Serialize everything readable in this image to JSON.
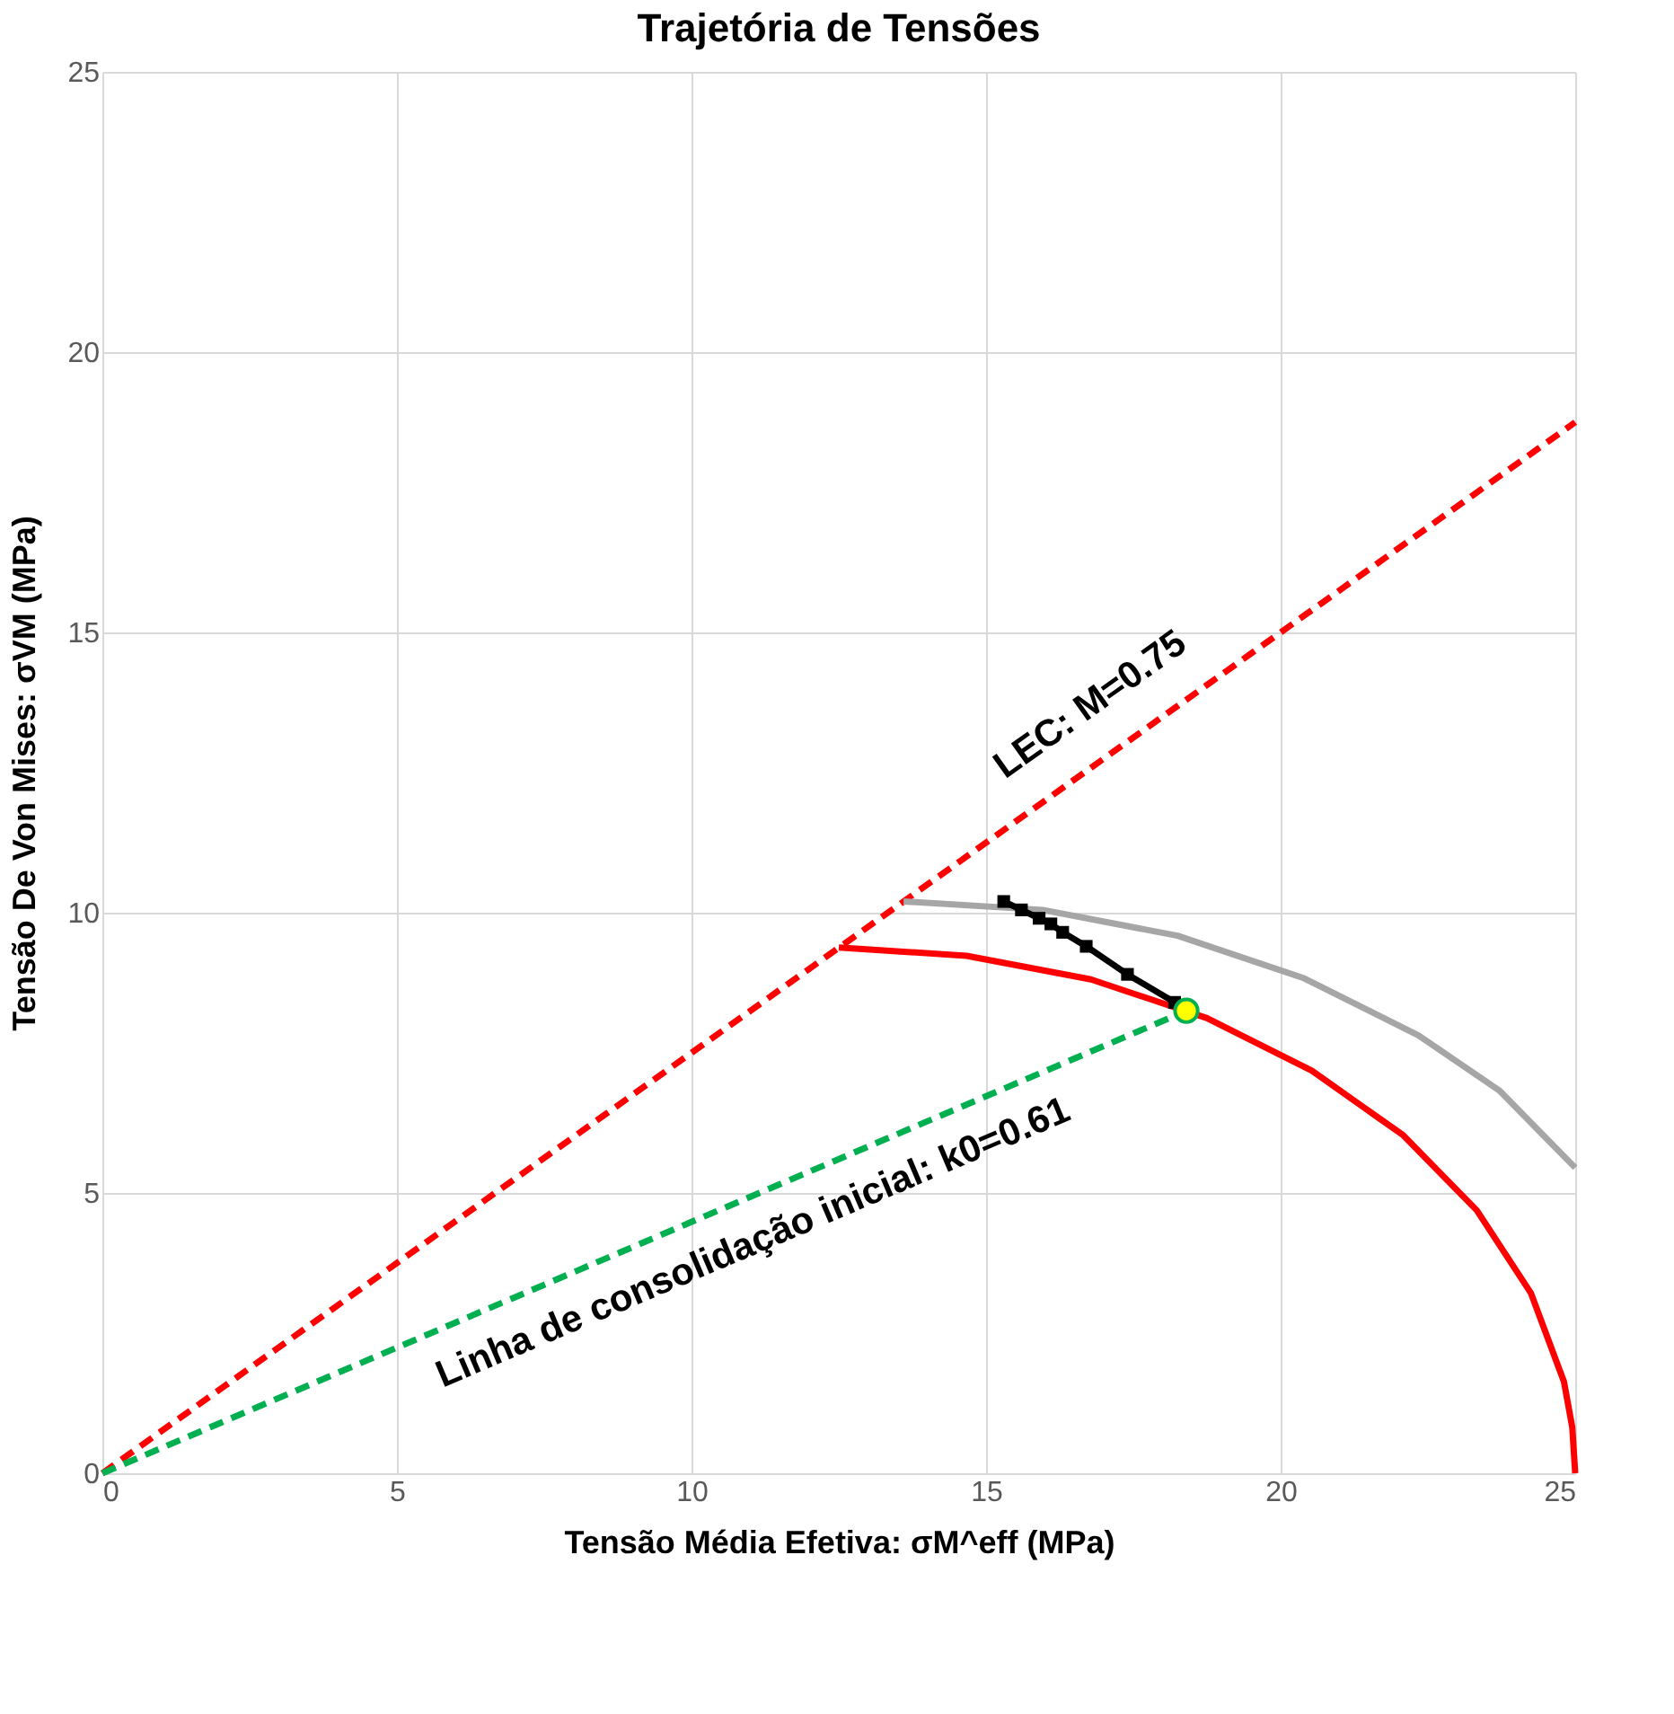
{
  "chart_data": {
    "type": "line",
    "title": "Trajetória de Tensões",
    "xlabel": "Tensão Média Efetiva: σM^eff (MPa)",
    "ylabel": "Tensão De Von Mises: σVM (MPa)",
    "xlim": [
      0,
      25
    ],
    "ylim": [
      0,
      25
    ],
    "xticks": [
      0,
      5,
      10,
      15,
      20,
      25
    ],
    "yticks": [
      0,
      5,
      10,
      15,
      20,
      25
    ],
    "grid": true,
    "series": [
      {
        "color": "#ff0000",
        "line_style": "dashed",
        "x": [
          0,
          25
        ],
        "values": [
          0,
          18.75
        ]
      },
      {
        "color": "#00b050",
        "line_style": "dashed",
        "x": [
          0,
          18.4
        ],
        "values": [
          0,
          8.25
        ]
      },
      {
        "color": "#ff0000",
        "x": [
          12.5,
          14.67,
          16.78,
          18.75,
          20.53,
          22.08,
          23.33,
          24.25,
          24.81,
          24.95,
          25
        ],
        "values": [
          9.38,
          9.23,
          8.81,
          8.12,
          7.18,
          6.03,
          4.69,
          3.21,
          1.63,
          0.82,
          0
        ]
      },
      {
        "color": "#a6a6a6",
        "x": [
          13.6,
          15.96,
          18.25,
          20.4,
          22.34,
          23.71,
          25
        ],
        "values": [
          10.2,
          10.05,
          9.59,
          8.83,
          7.81,
          6.83,
          5.45
        ]
      },
      {
        "color": "#000000",
        "marker": "square",
        "x": [
          18.2,
          17.4,
          16.7,
          16.3,
          16.1,
          15.9,
          15.6,
          15.3
        ],
        "values": [
          8.4,
          8.9,
          9.4,
          9.65,
          9.8,
          9.9,
          10.05,
          10.2
        ]
      },
      {
        "type": "scatter",
        "color": "#ffff00",
        "marker": "circle",
        "x": [
          18.4
        ],
        "values": [
          8.25
        ]
      }
    ],
    "annotations": [
      "LEC: M=0.75",
      "Linha de consolidação inicial: k0=0.61"
    ]
  }
}
